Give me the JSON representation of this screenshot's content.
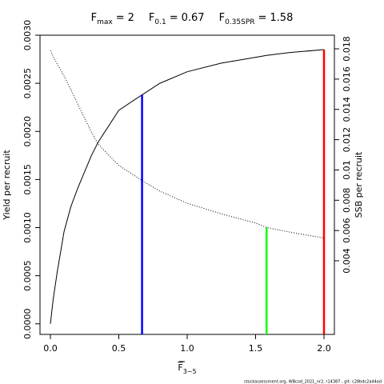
{
  "chart_data": {
    "type": "line",
    "operator": "=",
    "reference_points": [
      {
        "name": "F",
        "subscript": "max",
        "value": 2,
        "color": "#ff0000",
        "top": 0.00285,
        "axis": "y"
      },
      {
        "name": "F",
        "subscript": "0.1",
        "value": 0.67,
        "color": "#0000ff",
        "top": 0.00238,
        "axis": "y"
      },
      {
        "name": "F",
        "subscript": "0.35SPR",
        "value": 1.58,
        "color": "#00ff00",
        "top": 0.0062,
        "axis": "y2"
      }
    ],
    "xlabel": {
      "text": "F",
      "subscript": "3−5"
    },
    "ylabel": "Yield per recruit",
    "y2label": "SSB per recruit",
    "footer": "stockassessment.org, WBcod_2021_nr2, r14387 , git: c28bdc2a44ad",
    "x": [
      0,
      0.02,
      0.05,
      0.1,
      0.15,
      0.2,
      0.3,
      0.35,
      0.5,
      0.67,
      0.8,
      1,
      1.25,
      1.5,
      1.58,
      1.75,
      2
    ],
    "series": [
      {
        "name": "Yield per recruit",
        "color": "#000000",
        "dash": "solid",
        "axis": "y",
        "values": [
          0,
          0.00025,
          0.00054,
          0.00096,
          0.00122,
          0.00141,
          0.00175,
          0.00189,
          0.00222,
          0.00238,
          0.0025,
          0.00262,
          0.00271,
          0.00277,
          0.00279,
          0.00282,
          0.00285
        ]
      },
      {
        "name": "SSB per recruit",
        "color": "#000000",
        "dash": "dotted",
        "axis": "y2",
        "values": [
          0.0179,
          0.0175,
          0.017,
          0.0162,
          0.0153,
          0.01435,
          0.0125,
          0.0117,
          0.0103,
          0.0093,
          0.0086,
          0.0078,
          0.0071,
          0.0065,
          0.0062,
          0.0059,
          0.0055
        ]
      }
    ],
    "xlim": [
      -0.076,
      2.076
    ],
    "xticks": [
      {
        "value": 0,
        "label": "0.0"
      },
      {
        "value": 0.5,
        "label": "0.5"
      },
      {
        "value": 1,
        "label": "1.0"
      },
      {
        "value": 1.5,
        "label": "1.5"
      },
      {
        "value": 2,
        "label": "2.0"
      }
    ],
    "ylim": [
      -0.00011,
      0.003
    ],
    "yticks": [
      {
        "value": 0,
        "label": "0.0000"
      },
      {
        "value": 0.0005,
        "label": "0.0005"
      },
      {
        "value": 0.001,
        "label": "0.0010"
      },
      {
        "value": 0.0015,
        "label": "0.0015"
      },
      {
        "value": 0.002,
        "label": "0.0020"
      },
      {
        "value": 0.0025,
        "label": "0.0025"
      },
      {
        "value": 0.003,
        "label": "0.0030"
      }
    ],
    "y2lim": [
      -0.00086,
      0.0189
    ],
    "y2ticks": [
      0.004,
      0.006,
      0.008,
      0.01,
      0.012,
      0.014,
      0.016,
      0.018
    ]
  }
}
